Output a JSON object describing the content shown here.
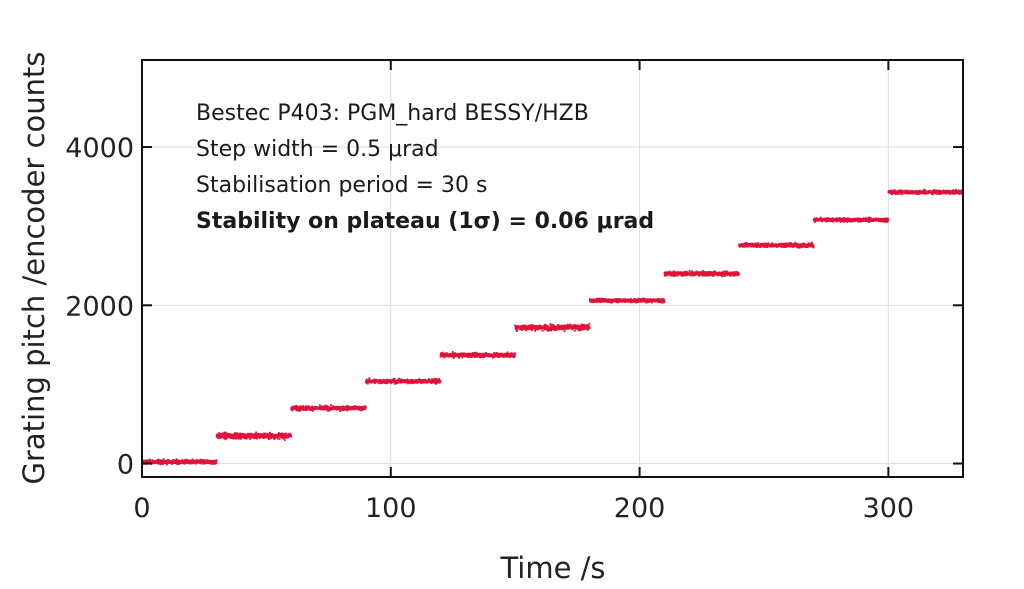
{
  "chart_data": {
    "type": "scatter",
    "xlabel": "Time /s",
    "ylabel": "Grating pitch /encoder counts",
    "xlim": [
      0,
      330
    ],
    "ylim": [
      -170,
      5100
    ],
    "x_ticks": [
      0,
      100,
      200,
      300
    ],
    "y_ticks": [
      0,
      2000,
      4000
    ],
    "x_tick_labels": [
      "0",
      "100",
      "200",
      "300"
    ],
    "y_tick_labels": [
      "0",
      "2000",
      "4000"
    ],
    "grid": true,
    "annotations": [
      "Bestec P403: PGM_hard BESSY/HZB",
      "Step width = 0.5 μrad",
      "Stabilisation period = 30 s",
      "Stability on plateau (1σ) = 0.06 μrad"
    ],
    "series": [
      {
        "color": "#e0143c",
        "plateaus": [
          {
            "t_start": 0,
            "t_end": 30,
            "mean": 20,
            "spread": 45
          },
          {
            "t_start": 30,
            "t_end": 60,
            "mean": 350,
            "spread": 60
          },
          {
            "t_start": 60,
            "t_end": 90,
            "mean": 700,
            "spread": 45
          },
          {
            "t_start": 90,
            "t_end": 120,
            "mean": 1040,
            "spread": 45
          },
          {
            "t_start": 120,
            "t_end": 150,
            "mean": 1370,
            "spread": 45
          },
          {
            "t_start": 150,
            "t_end": 180,
            "mean": 1720,
            "spread": 60
          },
          {
            "t_start": 180,
            "t_end": 210,
            "mean": 2060,
            "spread": 40
          },
          {
            "t_start": 210,
            "t_end": 240,
            "mean": 2400,
            "spread": 45
          },
          {
            "t_start": 240,
            "t_end": 270,
            "mean": 2760,
            "spread": 45
          },
          {
            "t_start": 270,
            "t_end": 300,
            "mean": 3080,
            "spread": 40
          },
          {
            "t_start": 300,
            "t_end": 330,
            "mean": 3430,
            "spread": 40
          }
        ]
      }
    ]
  }
}
